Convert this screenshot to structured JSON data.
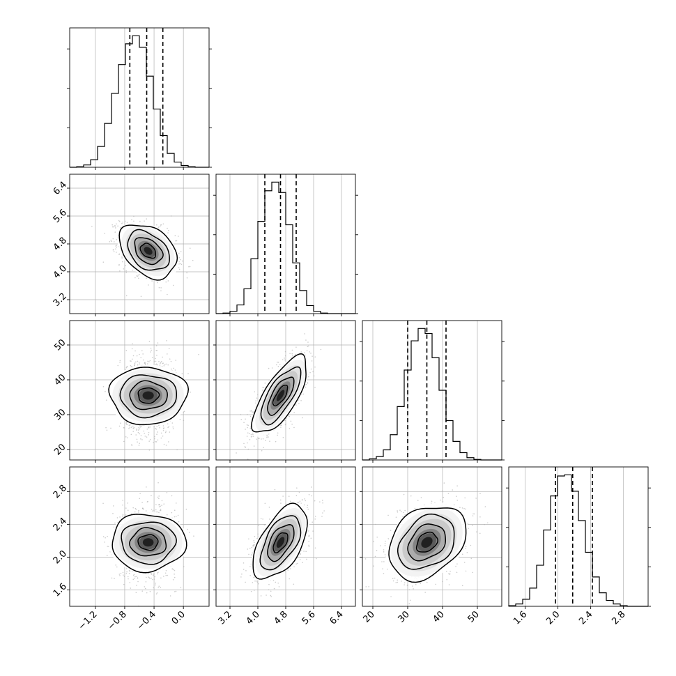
{
  "chart_data": {
    "type": "corner",
    "title": "",
    "parameters": [
      "",
      "",
      "",
      ""
    ],
    "axes": [
      {
        "range": [
          -1.55,
          0.35
        ],
        "ticks": [
          -1.2,
          -0.8,
          -0.4,
          0.0
        ],
        "tick_labels": [
          "−1.2",
          "−0.8",
          "−0.4",
          "0.0"
        ]
      },
      {
        "range": [
          2.8,
          6.8
        ],
        "ticks": [
          3.2,
          4.0,
          4.8,
          5.6,
          6.4
        ],
        "tick_labels": [
          "3.2",
          "4.0",
          "4.8",
          "5.6",
          "6.4"
        ]
      },
      {
        "range": [
          17,
          57
        ],
        "ticks": [
          20,
          30,
          40,
          50
        ],
        "tick_labels": [
          "20",
          "30",
          "40",
          "50"
        ]
      },
      {
        "range": [
          1.4,
          3.1
        ],
        "ticks": [
          1.6,
          2.0,
          2.4,
          2.8
        ],
        "tick_labels": [
          "1.6",
          "2.0",
          "2.4",
          "2.8"
        ]
      }
    ],
    "marginals": [
      {
        "quantiles": [
          -0.73,
          -0.5,
          -0.28
        ],
        "bin_edges": [
          -1.55,
          -1.455,
          -1.36,
          -1.265,
          -1.17,
          -1.075,
          -0.98,
          -0.885,
          -0.79,
          -0.695,
          -0.6,
          -0.505,
          -0.41,
          -0.315,
          -0.22,
          -0.125,
          -0.03,
          0.065,
          0.16,
          0.255,
          0.35
        ],
        "counts": [
          0,
          1,
          4,
          13,
          36,
          76,
          128,
          178,
          214,
          228,
          208,
          158,
          101,
          55,
          24,
          9,
          3,
          1,
          0,
          0
        ]
      },
      {
        "quantiles": [
          4.2,
          4.65,
          5.1
        ],
        "bin_edges": [
          2.8,
          3.0,
          3.2,
          3.4,
          3.6,
          3.8,
          4.0,
          4.2,
          4.4,
          4.6,
          4.8,
          5.0,
          5.2,
          5.4,
          5.6,
          5.8,
          6.0,
          6.2,
          6.4,
          6.6,
          6.8
        ],
        "counts": [
          0,
          1,
          4,
          15,
          43,
          95,
          160,
          213,
          228,
          210,
          154,
          88,
          40,
          14,
          4,
          1,
          0,
          0,
          0,
          0
        ]
      },
      {
        "quantiles": [
          30,
          35.5,
          41
        ],
        "bin_edges": [
          17,
          19,
          21,
          23,
          25,
          27,
          29,
          31,
          33,
          35,
          37,
          39,
          41,
          43,
          45,
          47,
          49,
          51,
          53,
          55,
          57
        ],
        "counts": [
          0,
          2,
          6,
          18,
          45,
          95,
          160,
          212,
          234,
          225,
          182,
          124,
          70,
          33,
          13,
          4,
          1,
          0,
          0,
          0
        ]
      },
      {
        "quantiles": [
          1.97,
          2.18,
          2.42
        ],
        "bin_edges": [
          1.4,
          1.485,
          1.57,
          1.655,
          1.74,
          1.825,
          1.91,
          1.995,
          2.08,
          2.165,
          2.25,
          2.335,
          2.42,
          2.505,
          2.59,
          2.675,
          2.76,
          2.845,
          2.93,
          3.015,
          3.1
        ],
        "counts": [
          1,
          4,
          12,
          31,
          70,
          130,
          188,
          222,
          224,
          196,
          146,
          92,
          50,
          23,
          10,
          4,
          1,
          0,
          0,
          0
        ]
      }
    ],
    "pairs": [
      {
        "row": 1,
        "col": 0,
        "center": [
          -0.48,
          4.6
        ],
        "spread": [
          0.19,
          0.38
        ],
        "corr": -0.35
      },
      {
        "row": 2,
        "col": 0,
        "center": [
          -0.48,
          35.5
        ],
        "spread": [
          0.19,
          5.4
        ],
        "corr": 0.0
      },
      {
        "row": 2,
        "col": 1,
        "center": [
          4.65,
          35.5
        ],
        "spread": [
          0.38,
          5.4
        ],
        "corr": 0.72
      },
      {
        "row": 3,
        "col": 0,
        "center": [
          -0.48,
          2.18
        ],
        "spread": [
          0.19,
          0.22
        ],
        "corr": 0.0
      },
      {
        "row": 3,
        "col": 1,
        "center": [
          4.65,
          2.18
        ],
        "spread": [
          0.38,
          0.22
        ],
        "corr": 0.55
      },
      {
        "row": 3,
        "col": 2,
        "center": [
          35.5,
          2.18
        ],
        "spread": [
          5.4,
          0.22
        ],
        "corr": 0.3
      }
    ],
    "contour_levels_sigma": [
      0.5,
      1.0,
      1.5,
      2.0
    ],
    "scatter_points_per_panel": 1300,
    "grid": true,
    "legend": "none",
    "colors": {
      "scatter": "#b5b5b5",
      "contour": "#000000",
      "density_dark": "#1a1a1a",
      "grid": "#b0b0b0"
    }
  }
}
